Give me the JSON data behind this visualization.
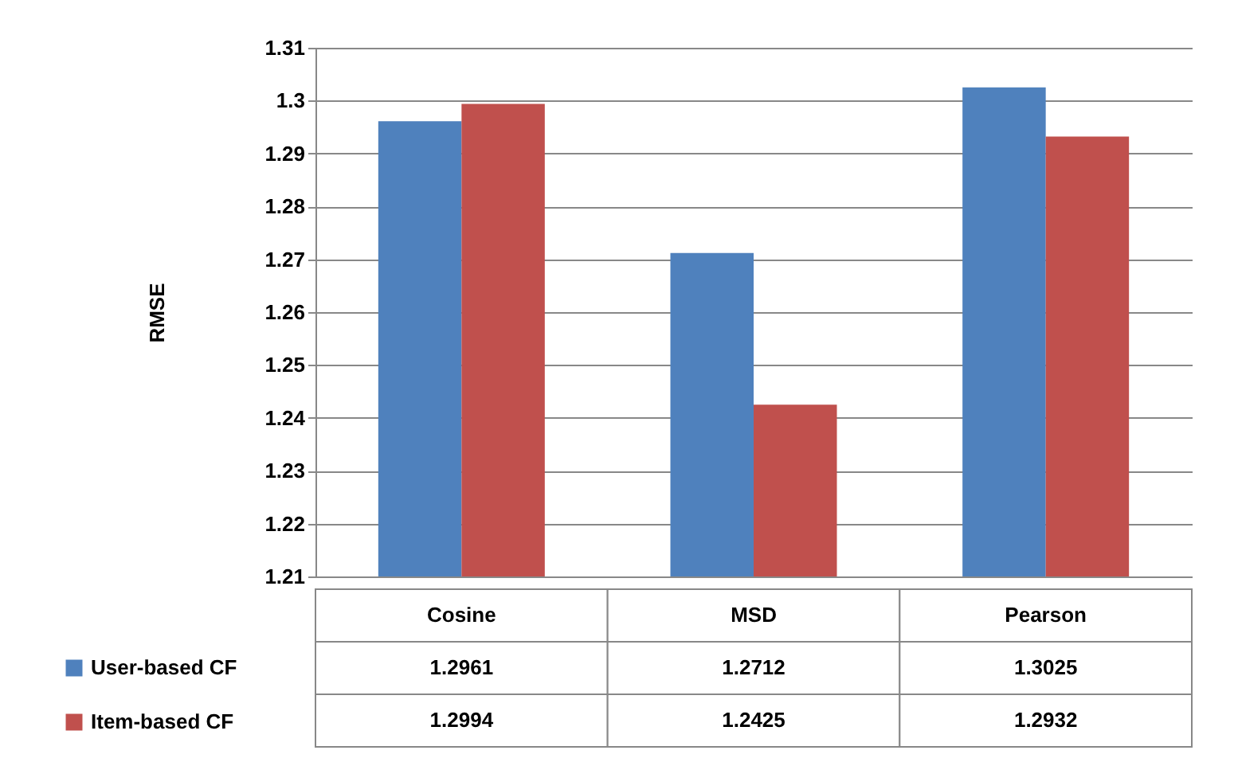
{
  "chart_data": {
    "type": "bar",
    "ylabel": "RMSE",
    "categories": [
      "Cosine",
      "MSD",
      "Pearson"
    ],
    "series": [
      {
        "name": "User-based CF",
        "color": "#4f81bd",
        "values": [
          1.2961,
          1.2712,
          1.3025
        ]
      },
      {
        "name": "Item-based CF",
        "color": "#c0504d",
        "values": [
          1.2994,
          1.2425,
          1.2932
        ]
      }
    ],
    "ylim": [
      1.21,
      1.31
    ],
    "yticks": [
      1.21,
      1.22,
      1.23,
      1.24,
      1.25,
      1.26,
      1.27,
      1.28,
      1.29,
      1.3,
      1.31
    ],
    "grid": "y",
    "data_labels": true,
    "legend": "bottom left"
  }
}
